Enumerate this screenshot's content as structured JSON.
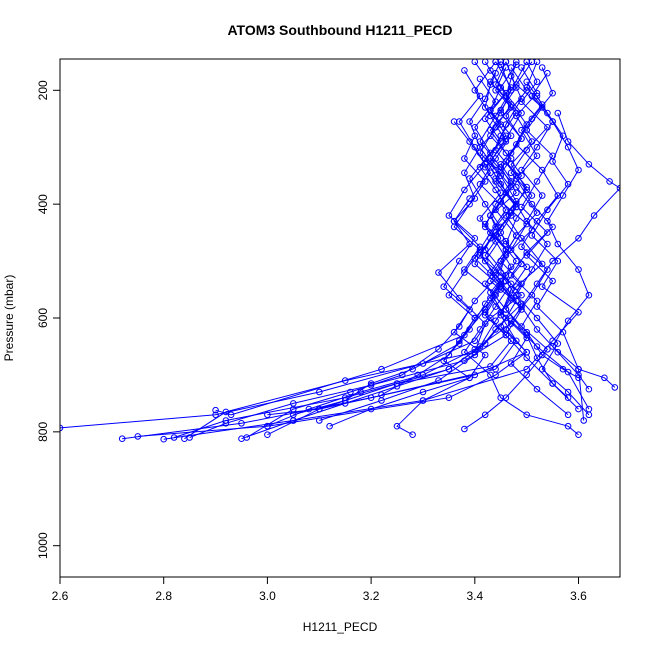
{
  "chart_data": {
    "type": "line",
    "title": "ATOM3 Southbound H1211_PECD",
    "xlabel": "H1211_PECD",
    "ylabel": "Pressure (mbar)",
    "xlim": [
      2.6,
      3.68
    ],
    "ylim": [
      1055,
      145
    ],
    "y_reversed": true,
    "x_ticks": [
      2.6,
      2.8,
      3.0,
      3.2,
      3.4,
      3.6
    ],
    "x_tick_labels": [
      "2.6",
      "2.8",
      "3.0",
      "3.2",
      "3.4",
      "3.6"
    ],
    "y_ticks": [
      200,
      400,
      600,
      800,
      1000
    ],
    "y_tick_labels": [
      "200",
      "400",
      "600",
      "800",
      "1000"
    ],
    "grid": false,
    "legend": "none",
    "series_color": "#0000ff",
    "marker": "open-circle",
    "series": [
      {
        "x": [
          3.4,
          3.43,
          3.42,
          3.45,
          3.41,
          3.44,
          3.46,
          3.43,
          3.45,
          3.42,
          3.47,
          3.44,
          3.41,
          3.38,
          3.43,
          3.45,
          3.5,
          3.58,
          3.6
        ],
        "y": [
          150,
          190,
          230,
          260,
          300,
          340,
          380,
          420,
          460,
          500,
          540,
          580,
          620,
          660,
          700,
          740,
          770,
          790,
          805
        ]
      },
      {
        "x": [
          3.46,
          3.44,
          3.48,
          3.45,
          3.43,
          3.47,
          3.44,
          3.42,
          3.46,
          3.45,
          3.49,
          3.43,
          3.4,
          3.3,
          3.1,
          2.9,
          2.6
        ],
        "y": [
          160,
          200,
          240,
          280,
          320,
          360,
          400,
          440,
          480,
          520,
          560,
          600,
          640,
          680,
          730,
          770,
          793
        ]
      },
      {
        "x": [
          3.5,
          3.52,
          3.49,
          3.54,
          3.5,
          3.47,
          3.51,
          3.48,
          3.46,
          3.5,
          3.47,
          3.45,
          3.48,
          3.44,
          3.2,
          2.95,
          2.72
        ],
        "y": [
          150,
          185,
          220,
          265,
          305,
          345,
          385,
          425,
          470,
          510,
          550,
          595,
          640,
          690,
          740,
          785,
          812
        ]
      },
      {
        "x": [
          3.56,
          3.58,
          3.62,
          3.66,
          3.68,
          3.63,
          3.6,
          3.55,
          3.52,
          3.49,
          3.46,
          3.5,
          3.44,
          3.35,
          3.0,
          2.75
        ],
        "y": [
          240,
          290,
          330,
          360,
          372,
          420,
          460,
          500,
          540,
          580,
          620,
          660,
          700,
          740,
          790,
          808
        ]
      },
      {
        "x": [
          3.44,
          3.42,
          3.39,
          3.41,
          3.38,
          3.4,
          3.36,
          3.39,
          3.33,
          3.37,
          3.42,
          3.4,
          3.15,
          2.92,
          2.84
        ],
        "y": [
          170,
          215,
          255,
          300,
          345,
          390,
          430,
          470,
          520,
          565,
          610,
          660,
          710,
          765,
          812
        ]
      },
      {
        "x": [
          3.52,
          3.5,
          3.54,
          3.57,
          3.55,
          3.58,
          3.54,
          3.51,
          3.56,
          3.53,
          3.6,
          3.55,
          3.5,
          3.3,
          3.05,
          2.8
        ],
        "y": [
          150,
          195,
          240,
          280,
          325,
          365,
          410,
          455,
          500,
          545,
          590,
          640,
          690,
          745,
          780,
          813
        ]
      },
      {
        "x": [
          3.45,
          3.47,
          3.44,
          3.41,
          3.45,
          3.48,
          3.43,
          3.46,
          3.49,
          3.45,
          3.42,
          3.47,
          3.43,
          3.25,
          3.1,
          3.0
        ],
        "y": [
          155,
          200,
          245,
          290,
          335,
          380,
          420,
          465,
          505,
          550,
          595,
          640,
          685,
          715,
          760,
          805
        ]
      },
      {
        "x": [
          3.48,
          3.46,
          3.5,
          3.47,
          3.44,
          3.48,
          3.51,
          3.46,
          3.43,
          3.49,
          3.52,
          3.56,
          3.6,
          3.62
        ],
        "y": [
          150,
          210,
          260,
          310,
          355,
          400,
          445,
          490,
          535,
          580,
          620,
          660,
          700,
          725
        ]
      },
      {
        "x": [
          3.38,
          3.41,
          3.37,
          3.4,
          3.43,
          3.39,
          3.36,
          3.41,
          3.38,
          3.44,
          3.4,
          3.37,
          3.28,
          3.2,
          3.15,
          3.05
        ],
        "y": [
          165,
          210,
          255,
          300,
          345,
          390,
          430,
          475,
          515,
          560,
          600,
          645,
          690,
          715,
          745,
          770
        ]
      },
      {
        "x": [
          3.53,
          3.55,
          3.51,
          3.48,
          3.53,
          3.56,
          3.52,
          3.49,
          3.54,
          3.51,
          3.47,
          3.52,
          3.58,
          3.62
        ],
        "y": [
          160,
          205,
          250,
          295,
          340,
          385,
          430,
          475,
          515,
          560,
          605,
          650,
          695,
          760
        ]
      },
      {
        "x": [
          3.42,
          3.45,
          3.43,
          3.47,
          3.44,
          3.41,
          3.46,
          3.43,
          3.4,
          3.45,
          3.42,
          3.38,
          3.22,
          2.93,
          2.9
        ],
        "y": [
          150,
          195,
          235,
          280,
          320,
          365,
          410,
          450,
          495,
          540,
          585,
          630,
          690,
          770,
          762
        ]
      },
      {
        "x": [
          3.47,
          3.49,
          3.46,
          3.44,
          3.48,
          3.45,
          3.5,
          3.47,
          3.44,
          3.48,
          3.45,
          3.5,
          3.4,
          3.1,
          3.0
        ],
        "y": [
          175,
          215,
          260,
          305,
          350,
          395,
          435,
          480,
          525,
          570,
          615,
          660,
          700,
          760,
          770
        ]
      },
      {
        "x": [
          3.36,
          3.39,
          3.42,
          3.38,
          3.35,
          3.4,
          3.37,
          3.34,
          3.39,
          3.36,
          3.42,
          3.39,
          3.3,
          3.25,
          3.28
        ],
        "y": [
          255,
          290,
          330,
          375,
          420,
          460,
          500,
          545,
          585,
          625,
          665,
          705,
          745,
          790,
          805
        ]
      },
      {
        "x": [
          3.51,
          3.48,
          3.53,
          3.5,
          3.55,
          3.52,
          3.49,
          3.54,
          3.5,
          3.55,
          3.52,
          3.57,
          3.6,
          3.61
        ],
        "y": [
          150,
          190,
          230,
          270,
          315,
          360,
          405,
          450,
          490,
          535,
          580,
          625,
          690,
          780
        ]
      },
      {
        "x": [
          3.44,
          3.4,
          3.43,
          3.46,
          3.42,
          3.45,
          3.41,
          3.44,
          3.47,
          3.43,
          3.46,
          3.42,
          3.35,
          3.15,
          2.92,
          2.82
        ],
        "y": [
          150,
          200,
          245,
          290,
          335,
          380,
          425,
          465,
          510,
          555,
          600,
          645,
          690,
          740,
          780,
          810
        ]
      },
      {
        "x": [
          3.49,
          3.52,
          3.48,
          3.51,
          3.47,
          3.5,
          3.46,
          3.49,
          3.53,
          3.48,
          3.45,
          3.5,
          3.47,
          3.52,
          3.58
        ],
        "y": [
          160,
          205,
          245,
          290,
          330,
          375,
          420,
          460,
          505,
          545,
          590,
          635,
          680,
          725,
          770
        ]
      },
      {
        "x": [
          3.45,
          3.43,
          3.47,
          3.44,
          3.41,
          3.45,
          3.48,
          3.44,
          3.42,
          3.46,
          3.43,
          3.47,
          3.4,
          3.3,
          3.18,
          3.08,
          3.0
        ],
        "y": [
          150,
          185,
          225,
          265,
          310,
          350,
          395,
          440,
          480,
          525,
          565,
          610,
          655,
          700,
          730,
          760,
          790
        ]
      },
      {
        "x": [
          3.5,
          3.47,
          3.45,
          3.49,
          3.46,
          3.5,
          3.47,
          3.44,
          3.48,
          3.45,
          3.49,
          3.46,
          3.5,
          3.55,
          3.6
        ],
        "y": [
          150,
          200,
          240,
          285,
          325,
          370,
          415,
          455,
          500,
          540,
          585,
          630,
          670,
          715,
          760
        ]
      },
      {
        "x": [
          3.41,
          3.44,
          3.4,
          3.43,
          3.39,
          3.42,
          3.45,
          3.41,
          3.44,
          3.4,
          3.37,
          3.33,
          3.26,
          3.16,
          3.05,
          2.96
        ],
        "y": [
          180,
          220,
          265,
          310,
          355,
          400,
          440,
          485,
          530,
          570,
          615,
          655,
          700,
          730,
          760,
          810
        ]
      },
      {
        "x": [
          3.46,
          3.48,
          3.45,
          3.43,
          3.47,
          3.44,
          3.48,
          3.45,
          3.42,
          3.46,
          3.49,
          3.44,
          3.4,
          3.33,
          3.22,
          3.1
        ],
        "y": [
          150,
          195,
          235,
          280,
          320,
          360,
          405,
          450,
          490,
          535,
          575,
          620,
          665,
          710,
          745,
          780
        ]
      },
      {
        "x": [
          3.52,
          3.55,
          3.58,
          3.6,
          3.57,
          3.54,
          3.56,
          3.6,
          3.62,
          3.58,
          3.55,
          3.6,
          3.65,
          3.67
        ],
        "y": [
          210,
          255,
          300,
          340,
          385,
          430,
          470,
          515,
          560,
          605,
          650,
          690,
          705,
          722
        ]
      },
      {
        "x": [
          3.43,
          3.46,
          3.42,
          3.45,
          3.41,
          3.44,
          3.47,
          3.43,
          3.4,
          3.45,
          3.42,
          3.46,
          3.38,
          3.2,
          3.05,
          2.92,
          2.85
        ],
        "y": [
          165,
          205,
          250,
          290,
          335,
          375,
          420,
          460,
          505,
          545,
          590,
          630,
          675,
          718,
          750,
          785,
          810
        ]
      },
      {
        "x": [
          3.48,
          3.45,
          3.49,
          3.46,
          3.43,
          3.47,
          3.44,
          3.48,
          3.45,
          3.42,
          3.46,
          3.5,
          3.52,
          3.55,
          3.58
        ],
        "y": [
          155,
          195,
          240,
          285,
          325,
          370,
          410,
          455,
          500,
          540,
          585,
          630,
          670,
          715,
          740
        ]
      },
      {
        "x": [
          3.4,
          3.38,
          3.42,
          3.39,
          3.36,
          3.41,
          3.38,
          3.35,
          3.4,
          3.37,
          3.34,
          3.39,
          3.3,
          3.2,
          3.12
        ],
        "y": [
          280,
          320,
          360,
          400,
          440,
          480,
          520,
          560,
          600,
          640,
          675,
          705,
          730,
          760,
          790
        ]
      },
      {
        "x": [
          3.54,
          3.51,
          3.55,
          3.52,
          3.49,
          3.53,
          3.5,
          3.54,
          3.51,
          3.48,
          3.52,
          3.56,
          3.53,
          3.58,
          3.62
        ],
        "y": [
          170,
          210,
          255,
          300,
          340,
          385,
          430,
          470,
          515,
          560,
          600,
          645,
          690,
          730,
          770
        ]
      },
      {
        "x": [
          3.46,
          3.44,
          3.47,
          3.43,
          3.46,
          3.49,
          3.45,
          3.42,
          3.46,
          3.43,
          3.47,
          3.44,
          3.41,
          3.35,
          3.25,
          3.15,
          3.05,
          2.95
        ],
        "y": [
          150,
          190,
          230,
          270,
          310,
          350,
          395,
          435,
          480,
          520,
          565,
          605,
          650,
          690,
          720,
          750,
          780,
          812
        ]
      },
      {
        "x": [
          3.5,
          3.53,
          3.49,
          3.52,
          3.48,
          3.51,
          3.55,
          3.5,
          3.47,
          3.52,
          3.49,
          3.54,
          3.5,
          3.46,
          3.42,
          3.38
        ],
        "y": [
          185,
          225,
          270,
          315,
          355,
          400,
          440,
          485,
          525,
          570,
          615,
          655,
          700,
          740,
          770,
          795
        ]
      },
      {
        "x": [
          3.44,
          3.47,
          3.43,
          3.46,
          3.42,
          3.45,
          3.48,
          3.44,
          3.41,
          3.45,
          3.42,
          3.39,
          3.35,
          3.29,
          3.22
        ],
        "y": [
          150,
          195,
          235,
          280,
          320,
          365,
          405,
          450,
          490,
          535,
          575,
          620,
          665,
          700,
          735
        ]
      },
      {
        "x": [
          3.47,
          3.5,
          3.46,
          3.49,
          3.45,
          3.48,
          3.52,
          3.48,
          3.45,
          3.49,
          3.46,
          3.5,
          3.53,
          3.57,
          3.6
        ],
        "y": [
          160,
          200,
          245,
          285,
          330,
          370,
          415,
          455,
          500,
          540,
          585,
          625,
          665,
          690,
          705
        ]
      }
    ]
  }
}
